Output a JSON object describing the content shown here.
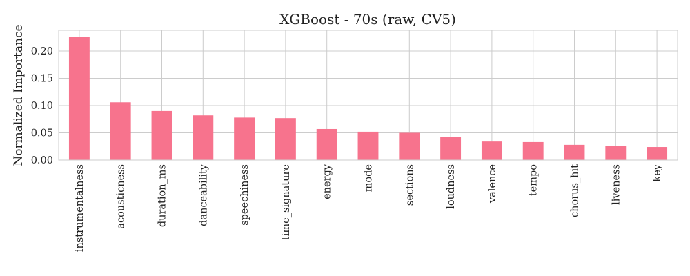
{
  "chart_data": {
    "type": "bar",
    "title": "XGBoost - 70s (raw, CV5)",
    "xlabel": "",
    "ylabel": "Normalized Importance",
    "categories": [
      "instrumentalness",
      "acousticness",
      "duration_ms",
      "danceability",
      "speechiness",
      "time_signature",
      "energy",
      "mode",
      "sections",
      "loudness",
      "valence",
      "tempo",
      "chorus_hit",
      "liveness",
      "key"
    ],
    "values": [
      0.226,
      0.106,
      0.09,
      0.082,
      0.078,
      0.077,
      0.057,
      0.052,
      0.05,
      0.043,
      0.034,
      0.033,
      0.028,
      0.026,
      0.024
    ],
    "ylim": [
      0,
      0.238
    ],
    "yticks": [
      0.0,
      0.05,
      0.1,
      0.15,
      0.2
    ],
    "ytick_labels": [
      "0.00",
      "0.05",
      "0.10",
      "0.15",
      "0.20"
    ],
    "bar_color": "#f7738d",
    "grid": true,
    "legend": "none"
  }
}
